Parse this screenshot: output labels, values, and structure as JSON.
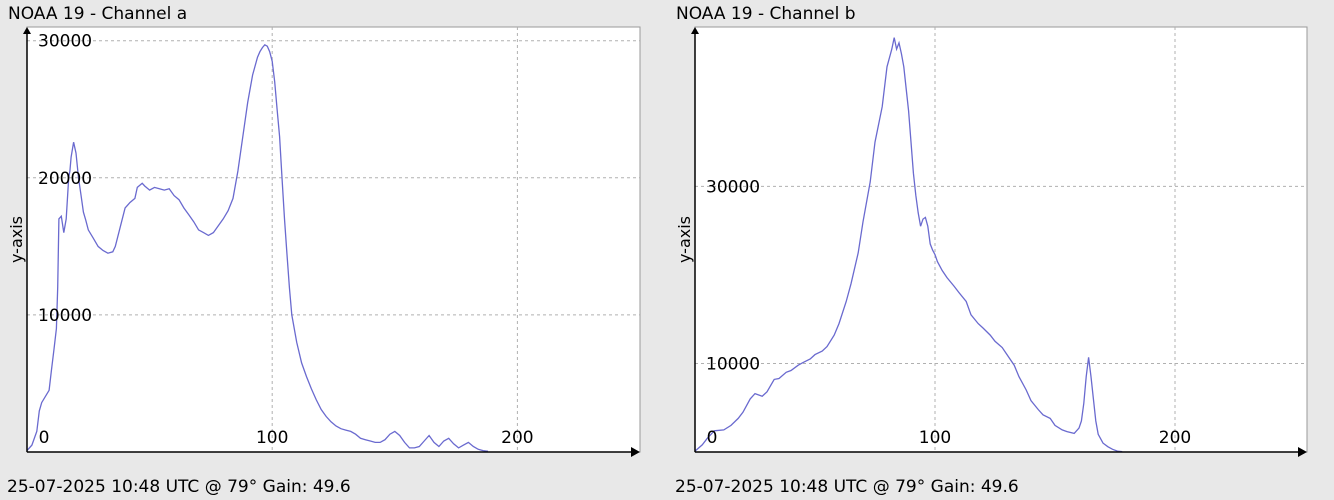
{
  "chart_data": [
    {
      "type": "line",
      "title": "NOAA 19 - Channel a",
      "footer": "25-07-2025 10:48 UTC @ 79° Gain: 49.6",
      "xlabel": "",
      "ylabel": "y-axis",
      "xlim": [
        0,
        250
      ],
      "ylim": [
        0,
        31000
      ],
      "x_ticks": [
        0,
        100,
        200
      ],
      "y_ticks": [
        10000,
        20000,
        30000
      ],
      "grid": true,
      "line_color": "#6a6acf",
      "series": [
        {
          "x": [
            0,
            2,
            4,
            5,
            6,
            8,
            9,
            10,
            11,
            12,
            12.5,
            13,
            14,
            15,
            16,
            17,
            17.5,
            18,
            19,
            20,
            21,
            22,
            23,
            24,
            25,
            27,
            29,
            31,
            33,
            35,
            36,
            38,
            40,
            42,
            44,
            45,
            47,
            48,
            50,
            52,
            54,
            56,
            58,
            60,
            62,
            64,
            66,
            68,
            70,
            72,
            74,
            76,
            78,
            80,
            82,
            84,
            86,
            88,
            90,
            92,
            94,
            95,
            96,
            97,
            98,
            99,
            100,
            101,
            102,
            103,
            104,
            105,
            106,
            107,
            108,
            110,
            112,
            114,
            116,
            118,
            120,
            122,
            124,
            126,
            128,
            130,
            132,
            134,
            136,
            138,
            140,
            142,
            144,
            146,
            148,
            150,
            152,
            154,
            156,
            158,
            160,
            162,
            164,
            166,
            168,
            170,
            172,
            174,
            176,
            178,
            180,
            182,
            184,
            186,
            188
          ],
          "y": [
            100,
            500,
            1500,
            3000,
            3600,
            4200,
            4500,
            6000,
            7500,
            9000,
            12000,
            17000,
            17200,
            16000,
            17000,
            20000,
            20500,
            21500,
            22600,
            21800,
            20000,
            18800,
            17500,
            16900,
            16200,
            15600,
            15000,
            14700,
            14500,
            14600,
            15000,
            16400,
            17800,
            18200,
            18500,
            19300,
            19600,
            19400,
            19100,
            19300,
            19200,
            19100,
            19200,
            18700,
            18400,
            17800,
            17300,
            16800,
            16200,
            16000,
            15800,
            16000,
            16500,
            17000,
            17600,
            18500,
            20500,
            23000,
            25500,
            27500,
            28800,
            29200,
            29500,
            29700,
            29600,
            29200,
            28500,
            27000,
            25000,
            23000,
            20000,
            17000,
            14500,
            12000,
            10000,
            8000,
            6500,
            5500,
            4600,
            3800,
            3100,
            2600,
            2200,
            1900,
            1700,
            1600,
            1500,
            1300,
            1000,
            900,
            800,
            700,
            700,
            900,
            1300,
            1500,
            1200,
            700,
            300,
            300,
            400,
            800,
            1200,
            700,
            400,
            800,
            1000,
            600,
            300,
            500,
            700,
            400,
            200,
            100,
            50
          ]
        }
      ]
    },
    {
      "type": "line",
      "title": "NOAA 19 - Channel b",
      "footer": "25-07-2025 10:48 UTC @ 79° Gain: 49.6",
      "xlabel": "",
      "ylabel": "y-axis",
      "xlim": [
        0,
        255
      ],
      "ylim": [
        0,
        48000
      ],
      "x_ticks": [
        0,
        100,
        200
      ],
      "y_ticks": [
        10000,
        30000
      ],
      "grid": true,
      "line_color": "#6a6acf",
      "series": [
        {
          "x": [
            0,
            3,
            5,
            8,
            12,
            15,
            18,
            20,
            23,
            25,
            28,
            30,
            33,
            35,
            38,
            40,
            43,
            45,
            48,
            50,
            53,
            55,
            58,
            60,
            63,
            65,
            68,
            70,
            73,
            75,
            78,
            80,
            82,
            83,
            84,
            85,
            86,
            87,
            88,
            89,
            90,
            91,
            92,
            93,
            94,
            95,
            96,
            97,
            98,
            99,
            100,
            101,
            103,
            105,
            108,
            110,
            113,
            115,
            118,
            120,
            123,
            125,
            128,
            130,
            133,
            135,
            138,
            140,
            143,
            145,
            148,
            150,
            153,
            155,
            158,
            160,
            161,
            162,
            163,
            164,
            165,
            166,
            167,
            168,
            170,
            172,
            174,
            176,
            178
          ],
          "y": [
            100,
            800,
            1500,
            2400,
            2500,
            3000,
            3800,
            4500,
            6000,
            6600,
            6300,
            6800,
            8200,
            8300,
            9000,
            9200,
            9800,
            10100,
            10500,
            11000,
            11400,
            11900,
            13200,
            14500,
            17000,
            19000,
            22500,
            26000,
            30500,
            35000,
            39000,
            43500,
            45500,
            46800,
            45500,
            46200,
            45000,
            43500,
            41000,
            38500,
            35000,
            31500,
            29000,
            27000,
            25500,
            26300,
            26500,
            25500,
            23500,
            22800,
            22300,
            21500,
            20500,
            19700,
            18700,
            18000,
            17000,
            15500,
            14500,
            14000,
            13200,
            12500,
            11800,
            11000,
            9800,
            8500,
            7000,
            5800,
            4800,
            4200,
            3800,
            3000,
            2500,
            2300,
            2100,
            2700,
            3500,
            5500,
            8500,
            10700,
            8500,
            6000,
            3500,
            2000,
            1000,
            600,
            300,
            100,
            50
          ]
        }
      ]
    }
  ]
}
